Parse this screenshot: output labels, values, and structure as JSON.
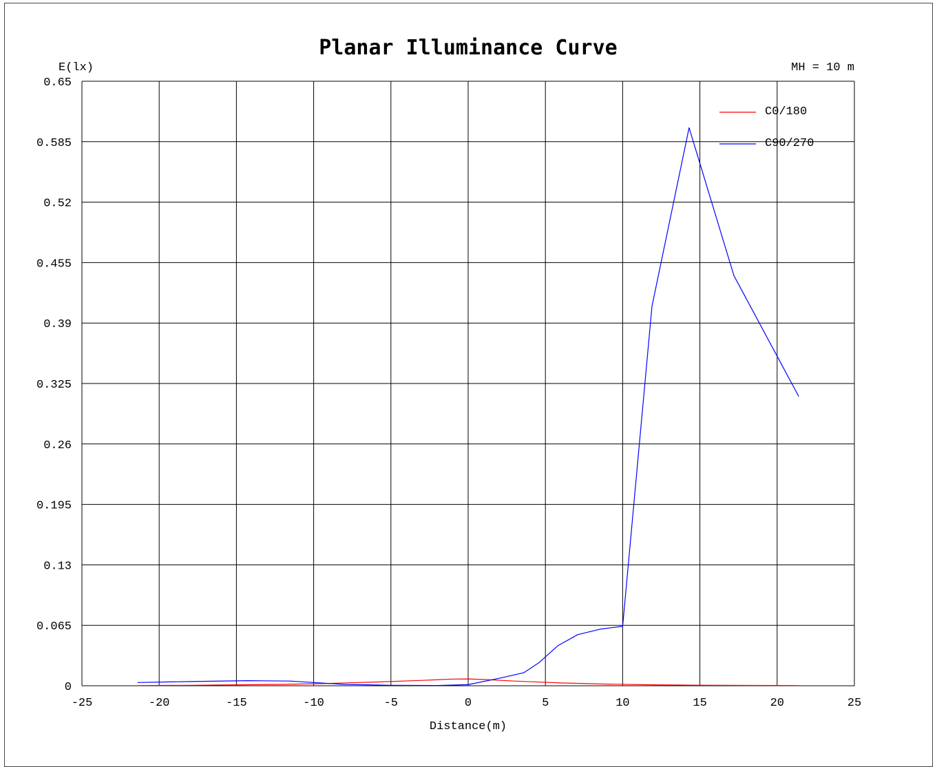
{
  "chart_data": {
    "type": "line",
    "title": "Planar Illuminance Curve",
    "ylabel": "E(lx)",
    "xlabel": "Distance(m)",
    "annotation": "MH = 10 m",
    "xlim": [
      -25,
      25
    ],
    "ylim": [
      0,
      0.65
    ],
    "xticks": [
      -25,
      -20,
      -15,
      -10,
      -5,
      0,
      5,
      10,
      15,
      20,
      25
    ],
    "yticks": [
      0,
      0.065,
      0.13,
      0.195,
      0.26,
      0.325,
      0.39,
      0.455,
      0.52,
      0.585,
      0.65
    ],
    "xtick_labels": [
      "-25",
      "-20",
      "-15",
      "-10",
      "-5",
      "0",
      "5",
      "10",
      "15",
      "20",
      "25"
    ],
    "ytick_labels": [
      "0",
      "0.065",
      "0.13",
      "0.195",
      "0.26",
      "0.325",
      "0.39",
      "0.455",
      "0.52",
      "0.585",
      "0.65"
    ],
    "grid": true,
    "legend_position": "top-right",
    "series": [
      {
        "name": "C0/180",
        "color": "#ff0000",
        "x": [
          -21.4,
          -18,
          -15,
          -12,
          -9,
          -6,
          -3,
          -1,
          0,
          1,
          3,
          6,
          9,
          12,
          15,
          18,
          21.4
        ],
        "y": [
          0.0002,
          0.0005,
          0.001,
          0.0015,
          0.0025,
          0.004,
          0.0058,
          0.0072,
          0.0073,
          0.0067,
          0.005,
          0.003,
          0.0018,
          0.001,
          0.0006,
          0.0004,
          0.0002
        ]
      },
      {
        "name": "C90/270",
        "color": "#0000ff",
        "x": [
          -21.4,
          -18,
          -14.3,
          -11.5,
          -10,
          -8,
          -5,
          -2,
          0,
          2,
          3.6,
          4.6,
          5.8,
          7.1,
          8.6,
          10,
          11.9,
          14.3,
          17.2,
          21.4
        ],
        "y": [
          0.0035,
          0.0045,
          0.0055,
          0.005,
          0.0035,
          0.0015,
          0.0005,
          0.0003,
          0.0012,
          0.008,
          0.014,
          0.025,
          0.043,
          0.055,
          0.061,
          0.064,
          0.408,
          0.6,
          0.441,
          0.311
        ]
      }
    ]
  }
}
